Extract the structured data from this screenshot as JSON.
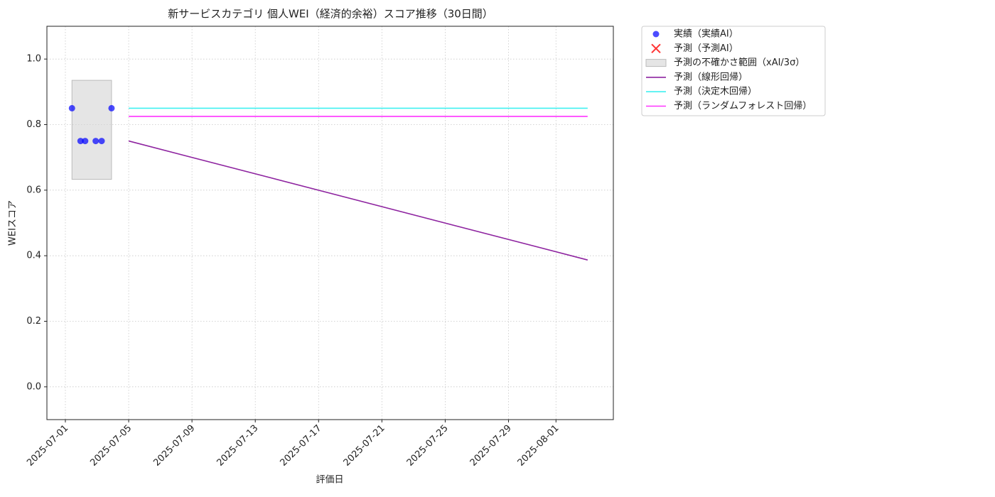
{
  "chart_data": {
    "type": "line",
    "title": "新サービスカテゴリ 個人WEI（経済的余裕）スコア推移（30日間）",
    "x_label": "評価日",
    "y_label": "WEIスコア",
    "xlim": [
      "2025-06-29T20:00",
      "2025-08-04T15:00"
    ],
    "xticks": [
      "2025-07-01",
      "2025-07-05",
      "2025-07-09",
      "2025-07-13",
      "2025-07-17",
      "2025-07-21",
      "2025-07-25",
      "2025-07-29",
      "2025-08-01"
    ],
    "ylim": [
      -0.1,
      1.1
    ],
    "yticks": [
      {
        "value": 0,
        "label": "0.0"
      },
      0.2,
      0.4,
      0.6,
      0.8,
      {
        "value": 1,
        "label": "1.0"
      }
    ],
    "grid": true,
    "legend": "outside upper right",
    "series": [
      {
        "name": "実績（実績AI）",
        "kind": "scatter",
        "color": "#0000ff",
        "x": [
          "2025-07-01T10:00",
          "2025-07-01T23:00",
          "2025-07-02T06:00",
          "2025-07-02T22:00",
          "2025-07-03T07:00",
          "2025-07-03T22:00"
        ],
        "values": [
          0.85,
          0.75,
          0.75,
          0.75,
          0.75,
          0.85
        ]
      },
      {
        "name": "予測（予測AI）",
        "kind": "cross",
        "color": "#ff0000",
        "x": [],
        "values": []
      },
      {
        "name": "予測の不確かさ範囲（xAI/3σ）",
        "kind": "band",
        "color": "#d3d3d3",
        "x": [
          "2025-07-01T10:00",
          "2025-07-03T22:00"
        ],
        "lower": [
          0.633,
          0.633
        ],
        "upper": [
          0.935,
          0.935
        ]
      },
      {
        "name": "予測（線形回帰）",
        "kind": "line",
        "color": "#8e24a0",
        "x": [
          "2025-07-05T00:00",
          "2025-08-03T00:00"
        ],
        "values": [
          0.75,
          0.387
        ]
      },
      {
        "name": "予測（決定木回帰）",
        "kind": "line",
        "color": "#3ff0f0",
        "x": [
          "2025-07-05T00:00",
          "2025-08-03T00:00"
        ],
        "values": [
          0.85,
          0.85
        ]
      },
      {
        "name": "予測（ランダムフォレスト回帰）",
        "kind": "line",
        "color": "#ff33ff",
        "x": [
          "2025-07-05T00:00",
          "2025-08-03T00:00"
        ],
        "values": [
          0.825,
          0.825
        ]
      }
    ]
  }
}
